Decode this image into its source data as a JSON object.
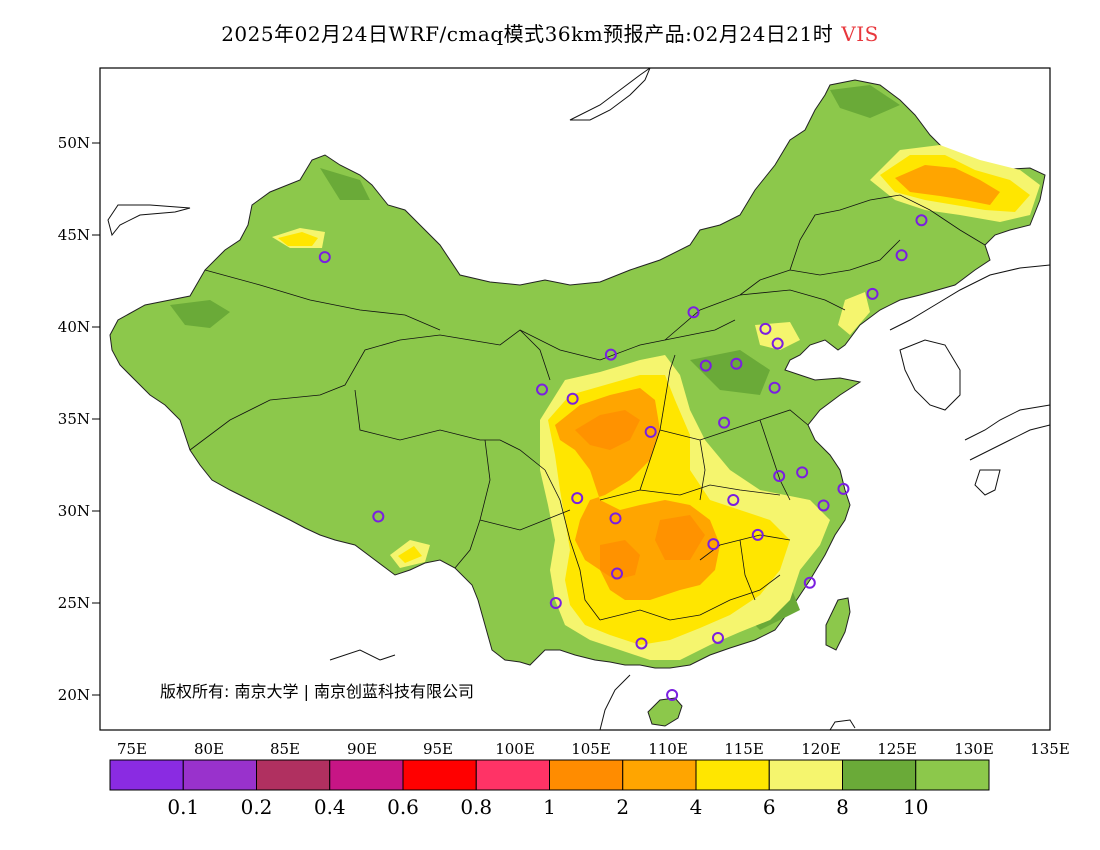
{
  "title": {
    "main": "2025年02月24日WRF/cmaq模式36km预报产品:02月24日21时",
    "variable": "VIS"
  },
  "map": {
    "lon_ticks": [
      "75E",
      "80E",
      "85E",
      "90E",
      "95E",
      "100E",
      "105E",
      "110E",
      "115E",
      "120E",
      "125E",
      "130E",
      "135E"
    ],
    "lat_ticks": [
      "50N",
      "45N",
      "40N",
      "35N",
      "30N",
      "25N",
      "20N"
    ],
    "copyright": "版权所有: 南京大学 | 南京创蓝科技有限公司",
    "stations": [
      [
        87.6,
        43.8
      ],
      [
        91.1,
        29.7
      ],
      [
        101.8,
        36.6
      ],
      [
        103.8,
        36.1
      ],
      [
        106.3,
        38.5
      ],
      [
        111.7,
        40.8
      ],
      [
        112.5,
        37.9
      ],
      [
        114.5,
        38.0
      ],
      [
        116.4,
        39.9
      ],
      [
        117.2,
        39.1
      ],
      [
        117.0,
        36.7
      ],
      [
        113.7,
        34.8
      ],
      [
        108.9,
        34.3
      ],
      [
        104.1,
        30.7
      ],
      [
        106.6,
        29.6
      ],
      [
        114.3,
        30.6
      ],
      [
        117.3,
        31.9
      ],
      [
        118.8,
        32.1
      ],
      [
        121.5,
        31.2
      ],
      [
        120.2,
        30.3
      ],
      [
        115.9,
        28.7
      ],
      [
        113.0,
        28.2
      ],
      [
        106.7,
        26.6
      ],
      [
        102.7,
        25.0
      ],
      [
        108.3,
        22.8
      ],
      [
        113.3,
        23.1
      ],
      [
        119.3,
        26.1
      ],
      [
        110.3,
        20.0
      ],
      [
        123.4,
        41.8
      ],
      [
        125.3,
        43.9
      ],
      [
        126.6,
        45.8
      ]
    ]
  },
  "legend": {
    "colors": [
      "#8a2be2",
      "#9932cc",
      "#b03060",
      "#c71585",
      "#ff0000",
      "#ff3366",
      "#ff8c00",
      "#ffa500",
      "#ffe600",
      "#f5f56e",
      "#6aaa38",
      "#8cc84b"
    ],
    "labels": [
      "0.1",
      "0.2",
      "0.4",
      "0.6",
      "0.8",
      "1",
      "2",
      "4",
      "6",
      "8",
      "10"
    ]
  }
}
